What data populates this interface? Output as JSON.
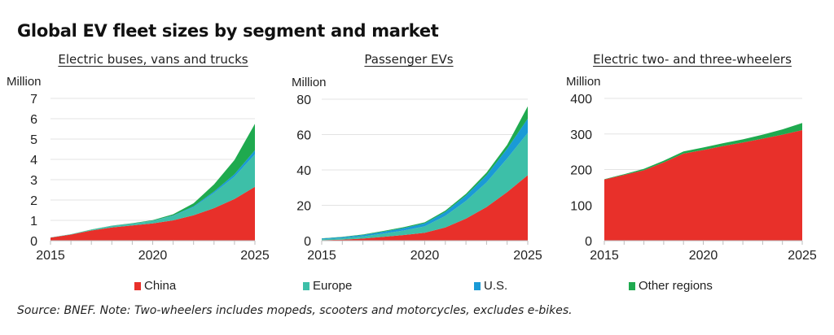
{
  "title": "Global EV fleet sizes by segment and market",
  "source": "Source: BNEF. Note: Two-wheelers includes mopeds, scooters and motorcycles, excludes e-bikes.",
  "legend": [
    {
      "label": "China",
      "color": "#e8302a"
    },
    {
      "label": "Europe",
      "color": "#3dbfa8"
    },
    {
      "label": "U.S.",
      "color": "#1a9ad6"
    },
    {
      "label": "Other regions",
      "color": "#1faa4f"
    }
  ],
  "chart_data": [
    {
      "type": "area",
      "stacked": true,
      "title": "Electric buses, vans and trucks",
      "ylabel": "Million",
      "xlabel": "",
      "x": [
        2015,
        2016,
        2017,
        2018,
        2019,
        2020,
        2021,
        2022,
        2023,
        2024,
        2025
      ],
      "xticks": [
        "2015",
        "2020",
        "2025"
      ],
      "yticks": [
        "0",
        "1",
        "2",
        "3",
        "4",
        "5",
        "6",
        "7"
      ],
      "ylim": [
        0,
        7
      ],
      "grid": true,
      "series": [
        {
          "name": "China",
          "values": [
            0.15,
            0.3,
            0.5,
            0.65,
            0.75,
            0.85,
            1.0,
            1.25,
            1.6,
            2.05,
            2.65
          ]
        },
        {
          "name": "Europe",
          "values": [
            0.01,
            0.02,
            0.04,
            0.07,
            0.08,
            0.12,
            0.22,
            0.4,
            0.75,
            1.1,
            1.6
          ]
        },
        {
          "name": "U.S.",
          "values": [
            0.0,
            0.0,
            0.0,
            0.01,
            0.01,
            0.01,
            0.02,
            0.04,
            0.07,
            0.12,
            0.2
          ]
        },
        {
          "name": "Other regions",
          "values": [
            0.0,
            0.0,
            0.01,
            0.01,
            0.02,
            0.03,
            0.06,
            0.15,
            0.35,
            0.7,
            1.3
          ]
        }
      ]
    },
    {
      "type": "area",
      "stacked": true,
      "title": "Passenger EVs",
      "ylabel": "Million",
      "xlabel": "",
      "x": [
        2015,
        2016,
        2017,
        2018,
        2019,
        2020,
        2021,
        2022,
        2023,
        2024,
        2025
      ],
      "xticks": [
        "2015",
        "2020",
        "2025"
      ],
      "yticks": [
        "0",
        "20",
        "40",
        "60",
        "80"
      ],
      "ylim": [
        0,
        80
      ],
      "grid": true,
      "series": [
        {
          "name": "China",
          "values": [
            0.3,
            0.6,
            1.2,
            2.2,
            3.2,
            4.5,
            7.5,
            12.5,
            19.0,
            27.5,
            37.0
          ]
        },
        {
          "name": "Europe",
          "values": [
            0.5,
            0.8,
            1.2,
            1.8,
            2.6,
            3.6,
            6.5,
            10.0,
            14.0,
            19.0,
            24.0
          ]
        },
        {
          "name": "U.S.",
          "values": [
            0.4,
            0.6,
            0.8,
            1.1,
            1.4,
            1.7,
            2.2,
            3.0,
            4.0,
            5.5,
            8.0
          ]
        },
        {
          "name": "Other regions",
          "values": [
            0.1,
            0.2,
            0.3,
            0.4,
            0.5,
            0.6,
            0.8,
            1.0,
            1.5,
            2.2,
            7.0
          ]
        }
      ]
    },
    {
      "type": "area",
      "stacked": true,
      "title": "Electric two- and three-wheelers",
      "ylabel": "Million",
      "xlabel": "",
      "x": [
        2015,
        2016,
        2017,
        2018,
        2019,
        2020,
        2021,
        2022,
        2023,
        2024,
        2025
      ],
      "xticks": [
        "2015",
        "2020",
        "2025"
      ],
      "yticks": [
        "0",
        "100",
        "200",
        "300",
        "400"
      ],
      "ylim": [
        0,
        400
      ],
      "grid": true,
      "series": [
        {
          "name": "China",
          "values": [
            172,
            185,
            198,
            220,
            245,
            255,
            266,
            276,
            287,
            298,
            311
          ]
        },
        {
          "name": "Europe",
          "values": [
            0,
            0,
            0,
            0,
            0,
            0,
            0,
            0,
            0,
            0,
            0
          ]
        },
        {
          "name": "U.S.",
          "values": [
            0,
            0,
            0,
            0,
            0,
            0,
            0,
            0,
            0,
            0,
            0
          ]
        },
        {
          "name": "Other regions",
          "values": [
            1,
            2,
            4,
            5,
            6,
            7,
            8,
            9,
            11,
            15,
            20
          ]
        }
      ]
    }
  ]
}
